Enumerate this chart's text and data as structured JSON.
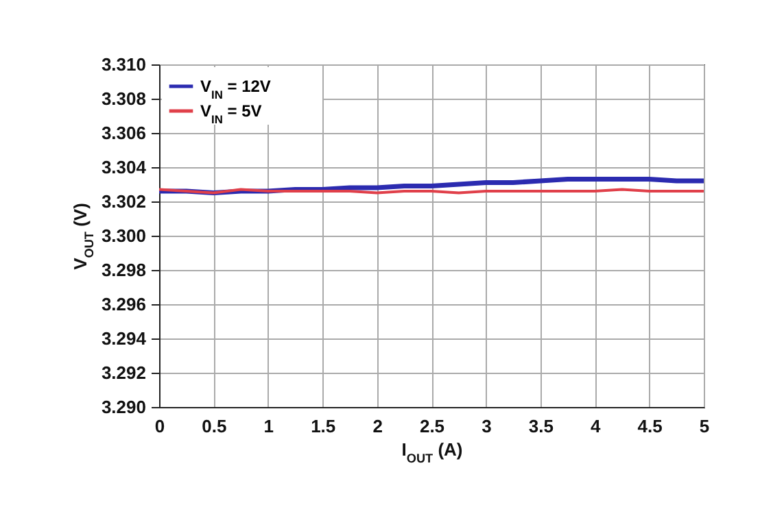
{
  "chart_data": {
    "type": "line",
    "xlabel": "I$_{OUT}$ (A)",
    "ylabel": "V$_{OUT}$ (V)",
    "x": [
      0,
      0.25,
      0.5,
      0.75,
      1,
      1.25,
      1.5,
      1.75,
      2,
      2.25,
      2.5,
      2.75,
      3,
      3.25,
      3.5,
      3.75,
      4,
      4.25,
      4.5,
      4.75,
      5
    ],
    "series": [
      {
        "name": "V$_{IN}$ = 12V",
        "color": "#2b2bb0",
        "values": [
          3.3026,
          3.3026,
          3.3025,
          3.3026,
          3.3026,
          3.3027,
          3.3027,
          3.3028,
          3.3028,
          3.3029,
          3.3029,
          3.303,
          3.3031,
          3.3031,
          3.3032,
          3.3033,
          3.3033,
          3.3033,
          3.3033,
          3.3032,
          3.3032
        ]
      },
      {
        "name": "V$_{IN}$ = 5V",
        "color": "#e0404a",
        "values": [
          3.3027,
          3.3026,
          3.3025,
          3.3027,
          3.3026,
          3.3026,
          3.3026,
          3.3026,
          3.3025,
          3.3026,
          3.3026,
          3.3025,
          3.3026,
          3.3026,
          3.3026,
          3.3026,
          3.3026,
          3.3027,
          3.3026,
          3.3026,
          3.3026
        ]
      }
    ],
    "xlim": [
      0,
      5
    ],
    "xticks": [
      0,
      0.5,
      1,
      1.5,
      2,
      2.5,
      3,
      3.5,
      4,
      4.5,
      5
    ],
    "ylim": [
      3.29,
      3.31
    ],
    "yticks": [
      {
        "value": 3.29,
        "label": "3.290"
      },
      {
        "value": 3.292,
        "label": "3.292"
      },
      {
        "value": 3.294,
        "label": "3.294"
      },
      {
        "value": 3.296,
        "label": "3.296"
      },
      {
        "value": 3.298,
        "label": "3.298"
      },
      {
        "value": 3.3,
        "label": "3.300"
      },
      {
        "value": 3.302,
        "label": "3.302"
      },
      {
        "value": 3.304,
        "label": "3.304"
      },
      {
        "value": 3.306,
        "label": "3.306"
      },
      {
        "value": 3.308,
        "label": "3.308"
      },
      {
        "value": 3.31,
        "label": "3.310"
      }
    ],
    "grid": true,
    "legend": "top left",
    "line_style": "solid",
    "marker": "none"
  }
}
